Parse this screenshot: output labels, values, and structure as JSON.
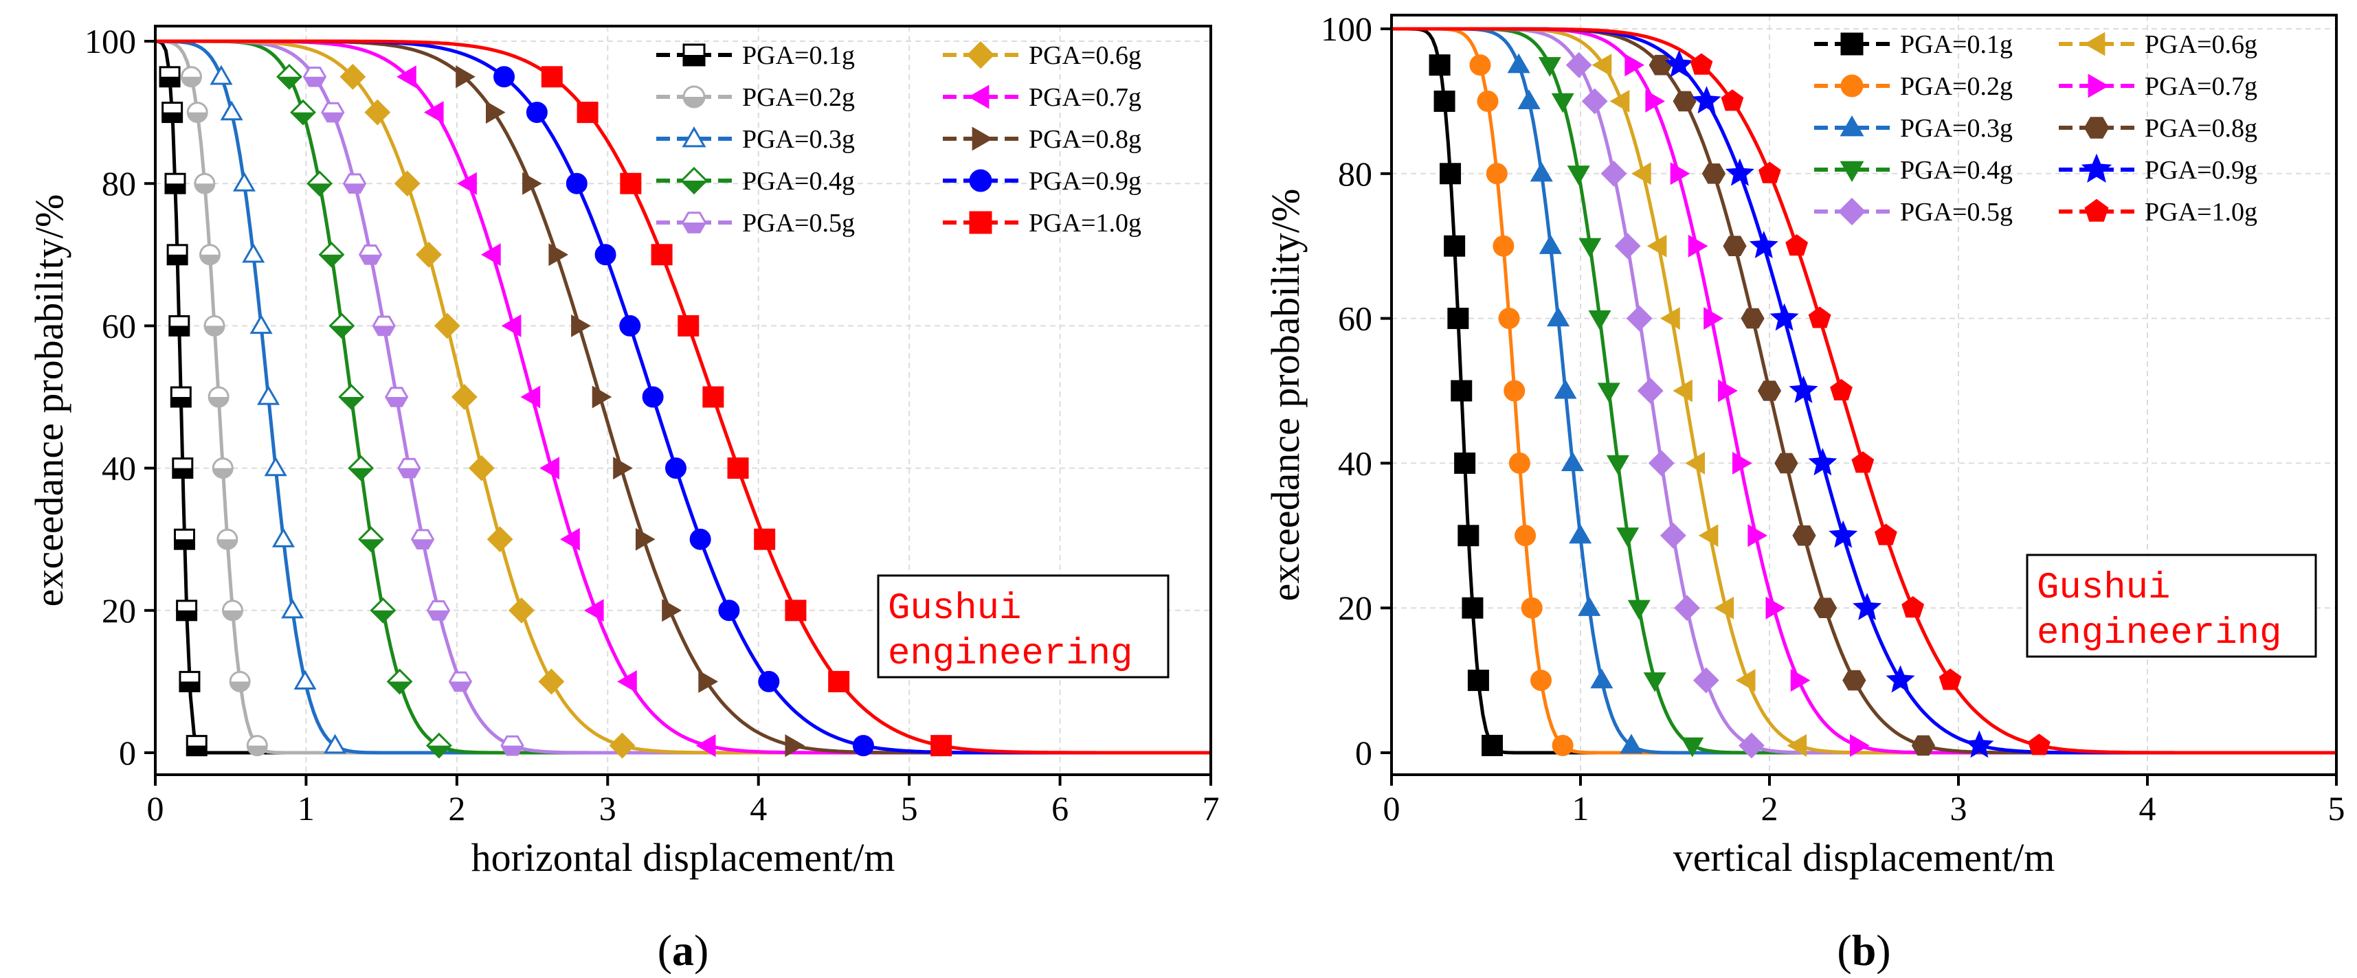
{
  "chart_data": [
    {
      "type": "line",
      "panel_label": "a",
      "xlabel": "horizontal displacement/m",
      "ylabel": "exceedance probability/%",
      "xlim": [
        0,
        7
      ],
      "ylim": [
        0,
        100
      ],
      "xticks": [
        "0",
        "1",
        "2",
        "3",
        "4",
        "5",
        "6",
        "7"
      ],
      "yticks": [
        "0",
        "20",
        "40",
        "60",
        "80",
        "100"
      ],
      "grid": true,
      "legend_placement": "top-right",
      "annotation": {
        "lines": [
          "Gushui",
          "engineering"
        ],
        "color": "#ff0000"
      },
      "curve_shape": "normal exceedance curve: y = 100 * (1 - Phi((x - median) / sigma))",
      "series": [
        {
          "name": "PGA=0.1g",
          "color": "#000000",
          "marker": "square-half-filled",
          "median": 0.17,
          "sigma": 0.045
        },
        {
          "name": "PGA=0.2g",
          "color": "#b0b0b0",
          "marker": "circle-half-filled",
          "median": 0.42,
          "sigma": 0.11
        },
        {
          "name": "PGA=0.3g",
          "color": "#1f6fc5",
          "marker": "triangle-open",
          "median": 0.75,
          "sigma": 0.19
        },
        {
          "name": "PGA=0.4g",
          "color": "#1a8a1a",
          "marker": "diamond-half-filled",
          "median": 1.3,
          "sigma": 0.25
        },
        {
          "name": "PGA=0.5g",
          "color": "#b57ee6",
          "marker": "hexagon-half-filled",
          "median": 1.6,
          "sigma": 0.33
        },
        {
          "name": "PGA=0.6g",
          "color": "#d9a520",
          "marker": "diamond",
          "median": 2.05,
          "sigma": 0.45
        },
        {
          "name": "PGA=0.7g",
          "color": "#ff00ff",
          "marker": "triangle-left",
          "median": 2.5,
          "sigma": 0.5
        },
        {
          "name": "PGA=0.8g",
          "color": "#6b4226",
          "marker": "triangle-right",
          "median": 2.95,
          "sigma": 0.55
        },
        {
          "name": "PGA=0.9g",
          "color": "#0000ff",
          "marker": "circle",
          "median": 3.3,
          "sigma": 0.6
        },
        {
          "name": "PGA=1.0g",
          "color": "#ff0000",
          "marker": "square",
          "median": 3.7,
          "sigma": 0.65
        }
      ]
    },
    {
      "type": "line",
      "panel_label": "b",
      "xlabel": "vertical displacement/m",
      "ylabel": "exceedance probability/%",
      "xlim": [
        0,
        5
      ],
      "ylim": [
        0,
        100
      ],
      "xticks": [
        "0",
        "1",
        "2",
        "3",
        "4",
        "5"
      ],
      "yticks": [
        "0",
        "20",
        "40",
        "60",
        "80",
        "100"
      ],
      "grid": true,
      "legend_placement": "top-right",
      "annotation": {
        "lines": [
          "Gushui",
          "engineering"
        ],
        "color": "#ff0000"
      },
      "curve_shape": "normal exceedance curve: y = 100 * (1 - Phi((x - median) / sigma))",
      "series": [
        {
          "name": "PGA=0.1g",
          "color": "#000000",
          "marker": "square",
          "median": 0.37,
          "sigma": 0.07
        },
        {
          "name": "PGA=0.2g",
          "color": "#ff7f0e",
          "marker": "circle",
          "median": 0.65,
          "sigma": 0.11
        },
        {
          "name": "PGA=0.3g",
          "color": "#1f6fc5",
          "marker": "triangle-up",
          "median": 0.92,
          "sigma": 0.15
        },
        {
          "name": "PGA=0.4g",
          "color": "#1a8a1a",
          "marker": "triangle-down",
          "median": 1.15,
          "sigma": 0.19
        },
        {
          "name": "PGA=0.5g",
          "color": "#b57ee6",
          "marker": "diamond",
          "median": 1.37,
          "sigma": 0.23
        },
        {
          "name": "PGA=0.6g",
          "color": "#d9a520",
          "marker": "triangle-left",
          "median": 1.55,
          "sigma": 0.26
        },
        {
          "name": "PGA=0.7g",
          "color": "#ff00ff",
          "marker": "triangle-right",
          "median": 1.77,
          "sigma": 0.3
        },
        {
          "name": "PGA=0.8g",
          "color": "#6b4226",
          "marker": "hexagon",
          "median": 2.0,
          "sigma": 0.35
        },
        {
          "name": "PGA=0.9g",
          "color": "#0000ff",
          "marker": "star",
          "median": 2.18,
          "sigma": 0.4
        },
        {
          "name": "PGA=1.0g",
          "color": "#ff0000",
          "marker": "pentagon",
          "median": 2.38,
          "sigma": 0.45
        }
      ]
    }
  ]
}
